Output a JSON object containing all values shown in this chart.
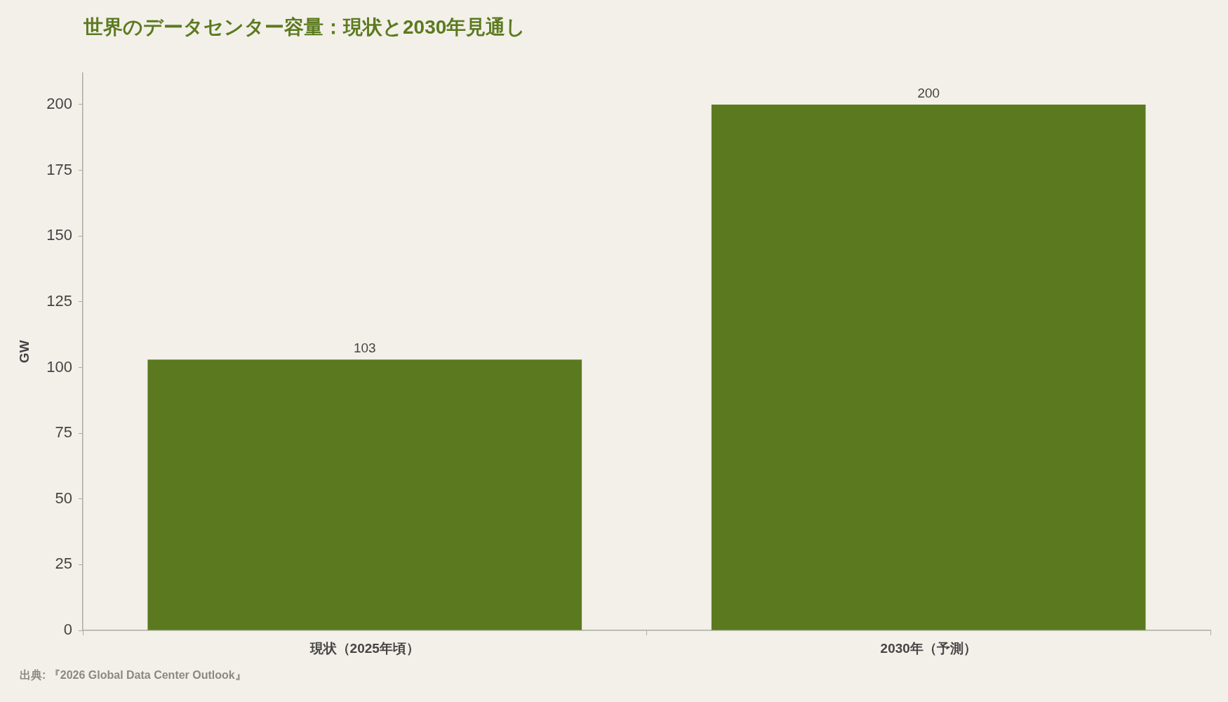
{
  "chart_data": {
    "type": "bar",
    "title": "世界のデータセンター容量：現状と2030年見通し",
    "categories": [
      "現状（2025年頃）",
      "2030年（予測）"
    ],
    "values": [
      103,
      200
    ],
    "color": "#5b7a1f",
    "ylabel": "GW",
    "ylim": [
      0,
      212
    ],
    "yticks": [
      0,
      25,
      50,
      75,
      100,
      125,
      150,
      175,
      200
    ],
    "grid": false,
    "legend": false,
    "data_labels": true,
    "annotations": [
      "出典: 『2026 Global Data Center Outlook』"
    ]
  }
}
